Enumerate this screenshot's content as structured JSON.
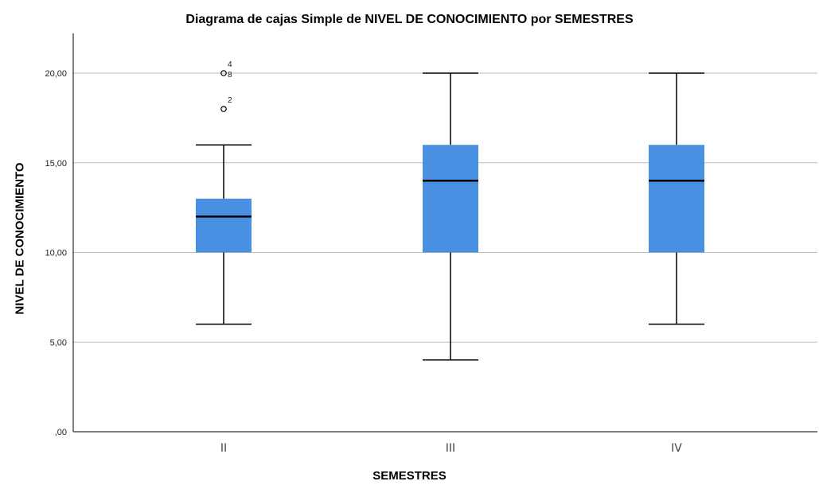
{
  "chart_data": {
    "type": "boxplot",
    "title": "Diagrama de cajas Simple de NIVEL DE CONOCIMIENTO por SEMESTRES",
    "xlabel": "SEMESTRES",
    "ylabel": "NIVEL DE CONOCIMIENTO",
    "ylim": [
      0,
      20
    ],
    "yticks": [
      0,
      5,
      10,
      15,
      20
    ],
    "ytick_labels": [
      ",00",
      "5,00",
      "10,00",
      "15,00",
      "20,00"
    ],
    "grid": true,
    "categories": [
      "II",
      "III",
      "IV"
    ],
    "boxes": [
      {
        "category": "II",
        "whisker_low": 6,
        "q1": 10,
        "median": 12,
        "q3": 13,
        "whisker_high": 16,
        "outliers": [
          {
            "value": 20,
            "labels": [
              "4",
              "8"
            ]
          },
          {
            "value": 18,
            "labels": [
              "2"
            ]
          }
        ]
      },
      {
        "category": "III",
        "whisker_low": 4,
        "q1": 10,
        "median": 14,
        "q3": 16,
        "whisker_high": 20,
        "outliers": []
      },
      {
        "category": "IV",
        "whisker_low": 6,
        "q1": 10,
        "median": 14,
        "q3": 16,
        "whisker_high": 20,
        "outliers": []
      }
    ],
    "colors": {
      "box": "#4a90e2",
      "median": "#000000",
      "grid": "#bdbdbd"
    }
  }
}
